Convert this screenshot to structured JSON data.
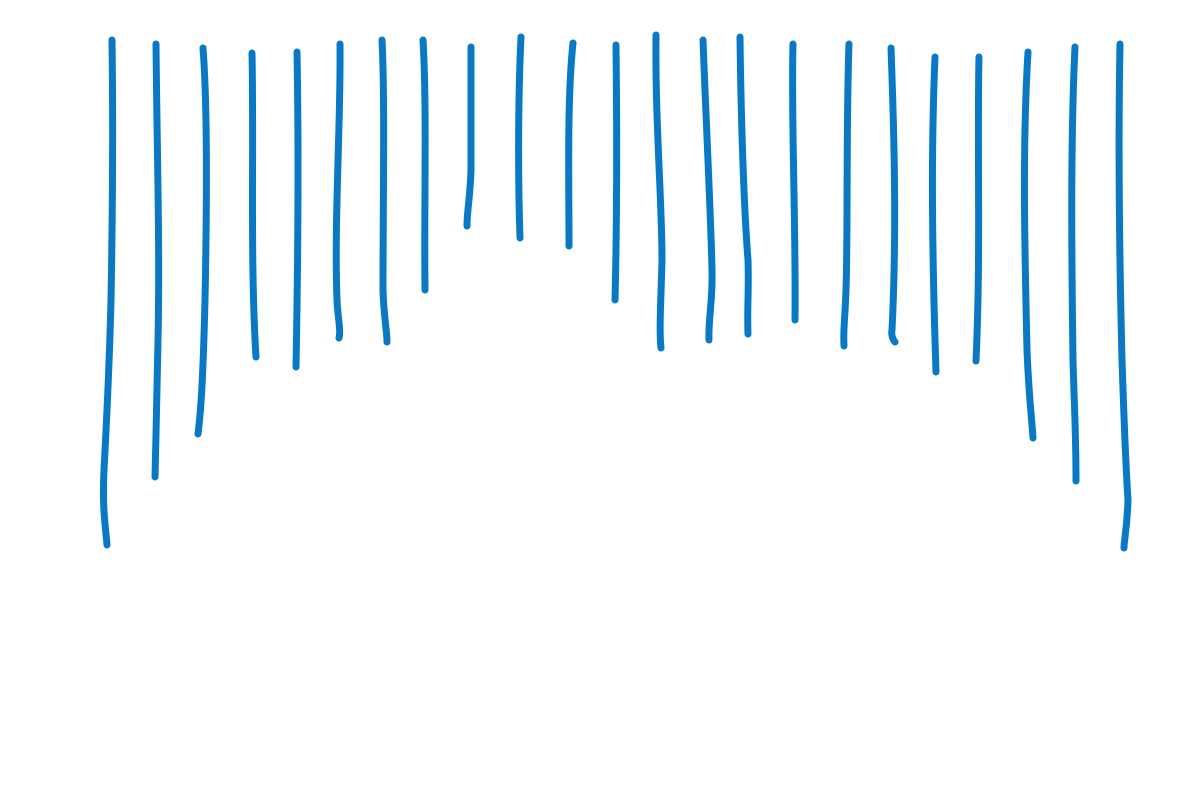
{
  "drawing": {
    "stroke_color": "#0A78C3",
    "background": "#FFFFFF",
    "stroke_count": 23
  }
}
